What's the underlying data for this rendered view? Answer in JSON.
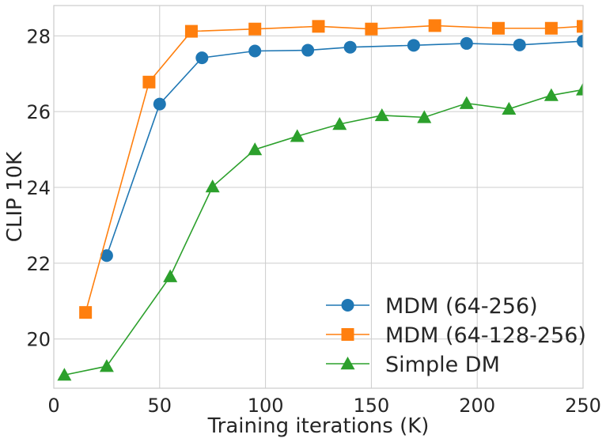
{
  "chart_data": {
    "type": "line",
    "title": "",
    "xlabel": "Training iterations (K)",
    "ylabel": "CLIP 10K",
    "xlim": [
      0,
      250
    ],
    "ylim": [
      18.7,
      28.8
    ],
    "xticks": [
      0,
      50,
      100,
      150,
      200,
      250
    ],
    "yticks": [
      20,
      22,
      24,
      26,
      28
    ],
    "grid": true,
    "legend_position": "lower-right",
    "series": [
      {
        "name": "MDM (64-256)",
        "color": "#1f77b4",
        "marker": "circle",
        "x": [
          25,
          50,
          70,
          95,
          120,
          140,
          170,
          195,
          220,
          250
        ],
        "y": [
          22.2,
          26.2,
          27.42,
          27.6,
          27.62,
          27.7,
          27.75,
          27.8,
          27.76,
          27.86
        ]
      },
      {
        "name": "MDM (64-128-256)",
        "color": "#ff7f0e",
        "marker": "square",
        "x": [
          15,
          45,
          65,
          95,
          125,
          150,
          180,
          210,
          235,
          250
        ],
        "y": [
          20.7,
          26.78,
          28.12,
          28.18,
          28.25,
          28.18,
          28.27,
          28.2,
          28.2,
          28.25
        ]
      },
      {
        "name": "Simple DM",
        "color": "#2ca02c",
        "marker": "triangle",
        "x": [
          5,
          25,
          55,
          75,
          95,
          115,
          135,
          155,
          175,
          195,
          215,
          235,
          250
        ],
        "y": [
          19.05,
          19.28,
          21.65,
          24.02,
          25.0,
          25.35,
          25.67,
          25.9,
          25.85,
          26.22,
          26.07,
          26.43,
          26.58
        ]
      }
    ]
  }
}
